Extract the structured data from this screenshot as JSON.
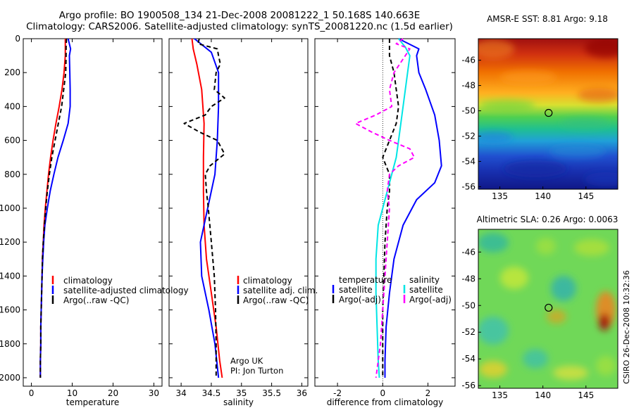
{
  "header": {
    "line1": "Argo profile: BO 1900508_134 21-Dec-2008 20081222_1 50.168S 140.663E",
    "line2": "Climatology: CARS2006. Satellite-adjusted climatology: synTS_20081220.nc (1.5d earlier)"
  },
  "side_label": "CSIRO 26-Dec-2008 10:32:36",
  "colors": {
    "climatology": "#ff0000",
    "satellite": "#0000ff",
    "argo": "#000000",
    "sat_sal_diff": "#00e5e5",
    "argo_sal_diff": "#ff00ff"
  },
  "chart_data": [
    {
      "type": "line",
      "xlabel": "temperature",
      "xlim": [
        -2,
        32
      ],
      "xticks": [
        0,
        10,
        20,
        30
      ],
      "ylim": [
        0,
        2050
      ],
      "yticks": [
        0,
        200,
        400,
        600,
        800,
        1000,
        1200,
        1400,
        1600,
        1800,
        2000
      ],
      "y_reversed": true,
      "legend": [
        "climatology",
        "satellite-adjusted climatology",
        "Argo(..raw -QC)"
      ],
      "series": [
        {
          "name": "climatology",
          "style": "solid",
          "color": "#ff0000",
          "points": [
            [
              8.3,
              0
            ],
            [
              8.3,
              100
            ],
            [
              8.0,
              200
            ],
            [
              7.5,
              300
            ],
            [
              6.8,
              400
            ],
            [
              6.0,
              500
            ],
            [
              5.3,
              600
            ],
            [
              4.7,
              700
            ],
            [
              4.2,
              800
            ],
            [
              3.8,
              900
            ],
            [
              3.4,
              1000
            ],
            [
              3.1,
              1100
            ],
            [
              2.9,
              1200
            ],
            [
              2.7,
              1300
            ],
            [
              2.6,
              1400
            ],
            [
              2.5,
              1500
            ],
            [
              2.4,
              1600
            ],
            [
              2.3,
              1700
            ],
            [
              2.3,
              1800
            ],
            [
              2.2,
              1900
            ],
            [
              2.2,
              2000
            ]
          ]
        },
        {
          "name": "satellite-adjusted climatology",
          "style": "solid",
          "color": "#0000ff",
          "points": [
            [
              9.0,
              0
            ],
            [
              9.6,
              60
            ],
            [
              9.3,
              100
            ],
            [
              9.4,
              200
            ],
            [
              9.5,
              300
            ],
            [
              9.5,
              400
            ],
            [
              9.0,
              500
            ],
            [
              7.8,
              600
            ],
            [
              6.5,
              700
            ],
            [
              5.5,
              800
            ],
            [
              4.6,
              900
            ],
            [
              3.9,
              1000
            ],
            [
              3.3,
              1100
            ],
            [
              3.0,
              1200
            ],
            [
              2.8,
              1300
            ],
            [
              2.6,
              1400
            ],
            [
              2.5,
              1500
            ],
            [
              2.4,
              1600
            ],
            [
              2.3,
              1700
            ],
            [
              2.3,
              1800
            ],
            [
              2.2,
              1900
            ],
            [
              2.2,
              2000
            ]
          ]
        },
        {
          "name": "Argo(..raw -QC)",
          "style": "dashed",
          "color": "#000000",
          "points": [
            [
              8.6,
              0
            ],
            [
              8.5,
              50
            ],
            [
              8.5,
              100
            ],
            [
              8.4,
              200
            ],
            [
              7.9,
              300
            ],
            [
              7.4,
              400
            ],
            [
              6.6,
              500
            ],
            [
              5.8,
              600
            ],
            [
              5.0,
              700
            ],
            [
              4.4,
              800
            ],
            [
              3.9,
              900
            ],
            [
              3.5,
              1000
            ],
            [
              3.2,
              1100
            ],
            [
              2.9,
              1200
            ],
            [
              2.7,
              1300
            ],
            [
              2.6,
              1400
            ],
            [
              2.5,
              1500
            ],
            [
              2.4,
              1600
            ],
            [
              2.3,
              1700
            ],
            [
              2.3,
              1800
            ],
            [
              2.2,
              1900
            ],
            [
              2.2,
              2000
            ]
          ]
        }
      ]
    },
    {
      "type": "line",
      "xlabel": "salinity",
      "xlim": [
        33.8,
        36.1
      ],
      "xticks": [
        34,
        34.5,
        35,
        35.5,
        36
      ],
      "ylim": [
        0,
        2050
      ],
      "y_reversed": true,
      "legend": [
        "climatology",
        "satellite adj. clim.",
        "Argo(..raw -QC)"
      ],
      "annotation": [
        "Argo UK",
        "PI: Jon Turton"
      ],
      "series": [
        {
          "name": "climatology",
          "style": "solid",
          "color": "#ff0000",
          "points": [
            [
              34.18,
              0
            ],
            [
              34.2,
              60
            ],
            [
              34.26,
              150
            ],
            [
              34.34,
              300
            ],
            [
              34.38,
              500
            ],
            [
              34.37,
              700
            ],
            [
              34.37,
              900
            ],
            [
              34.38,
              1100
            ],
            [
              34.42,
              1300
            ],
            [
              34.5,
              1500
            ],
            [
              34.58,
              1700
            ],
            [
              34.64,
              1900
            ],
            [
              34.68,
              2000
            ]
          ]
        },
        {
          "name": "satellite adj. clim.",
          "style": "solid",
          "color": "#0000ff",
          "points": [
            [
              34.22,
              0
            ],
            [
              34.5,
              80
            ],
            [
              34.62,
              200
            ],
            [
              34.62,
              400
            ],
            [
              34.6,
              600
            ],
            [
              34.56,
              800
            ],
            [
              34.44,
              1000
            ],
            [
              34.32,
              1200
            ],
            [
              34.34,
              1400
            ],
            [
              34.46,
              1600
            ],
            [
              34.56,
              1800
            ],
            [
              34.62,
              2000
            ]
          ]
        },
        {
          "name": "Argo(..raw -QC)",
          "style": "dashed",
          "color": "#000000",
          "points": [
            [
              34.3,
              0
            ],
            [
              34.28,
              30
            ],
            [
              34.6,
              60
            ],
            [
              34.62,
              100
            ],
            [
              34.65,
              150
            ],
            [
              34.58,
              200
            ],
            [
              34.55,
              300
            ],
            [
              34.72,
              350
            ],
            [
              34.5,
              400
            ],
            [
              34.4,
              450
            ],
            [
              34.05,
              500
            ],
            [
              34.3,
              550
            ],
            [
              34.6,
              600
            ],
            [
              34.72,
              680
            ],
            [
              34.48,
              750
            ],
            [
              34.4,
              800
            ],
            [
              34.42,
              900
            ],
            [
              34.45,
              1000
            ],
            [
              34.5,
              1200
            ],
            [
              34.55,
              1400
            ],
            [
              34.57,
              1600
            ],
            [
              34.58,
              1800
            ],
            [
              34.58,
              2000
            ]
          ]
        }
      ]
    },
    {
      "type": "line",
      "xlabel": "difference from climatology",
      "xlim": [
        -3,
        3.2
      ],
      "xticks": [
        -2,
        0,
        2
      ],
      "ylim": [
        0,
        2050
      ],
      "y_reversed": true,
      "legend": [
        {
          "heading": "temperature",
          "items": [
            "satellite",
            "Argo(-adj)"
          ]
        },
        {
          "heading": "salinity",
          "items": [
            "satellite",
            "Argo(-adj)"
          ]
        }
      ],
      "series": [
        {
          "name": "temperature satellite",
          "style": "solid",
          "color": "#0000ff",
          "points": [
            [
              0.7,
              0
            ],
            [
              1.6,
              60
            ],
            [
              1.5,
              100
            ],
            [
              1.6,
              200
            ],
            [
              1.9,
              300
            ],
            [
              2.3,
              450
            ],
            [
              2.5,
              600
            ],
            [
              2.6,
              750
            ],
            [
              2.3,
              850
            ],
            [
              1.5,
              950
            ],
            [
              0.9,
              1100
            ],
            [
              0.5,
              1300
            ],
            [
              0.3,
              1500
            ],
            [
              0.15,
              1700
            ],
            [
              0.1,
              1900
            ],
            [
              0.1,
              2000
            ]
          ]
        },
        {
          "name": "temperature Argo(-adj)",
          "style": "dashed",
          "color": "#000000",
          "points": [
            [
              0.3,
              0
            ],
            [
              0.3,
              100
            ],
            [
              0.5,
              200
            ],
            [
              0.6,
              300
            ],
            [
              0.7,
              400
            ],
            [
              0.6,
              500
            ],
            [
              0.3,
              600
            ],
            [
              0.0,
              700
            ],
            [
              0.3,
              800
            ],
            [
              0.3,
              900
            ],
            [
              0.2,
              1000
            ],
            [
              0.1,
              1200
            ],
            [
              0.05,
              1400
            ],
            [
              0.0,
              1600
            ],
            [
              0.0,
              1800
            ],
            [
              0.0,
              2000
            ]
          ]
        },
        {
          "name": "salinity satellite",
          "style": "solid",
          "color": "#00e5e5",
          "points": [
            [
              0.7,
              0
            ],
            [
              1.0,
              50
            ],
            [
              1.2,
              100
            ],
            [
              1.1,
              200
            ],
            [
              1.0,
              300
            ],
            [
              0.9,
              400
            ],
            [
              0.8,
              500
            ],
            [
              0.7,
              600
            ],
            [
              0.6,
              700
            ],
            [
              0.4,
              800
            ],
            [
              0.2,
              900
            ],
            [
              0.0,
              1000
            ],
            [
              -0.2,
              1100
            ],
            [
              -0.3,
              1300
            ],
            [
              -0.3,
              1500
            ],
            [
              -0.25,
              1700
            ],
            [
              -0.2,
              1900
            ],
            [
              -0.15,
              2000
            ]
          ]
        },
        {
          "name": "salinity Argo(-adj)",
          "style": "dashed",
          "color": "#ff00ff",
          "points": [
            [
              0.9,
              0
            ],
            [
              0.6,
              30
            ],
            [
              1.2,
              60
            ],
            [
              1.0,
              100
            ],
            [
              0.5,
              200
            ],
            [
              0.3,
              300
            ],
            [
              0.4,
              400
            ],
            [
              -0.3,
              450
            ],
            [
              -1.2,
              500
            ],
            [
              -0.5,
              550
            ],
            [
              0.3,
              600
            ],
            [
              1.2,
              650
            ],
            [
              1.4,
              700
            ],
            [
              0.7,
              750
            ],
            [
              0.3,
              800
            ],
            [
              0.2,
              900
            ],
            [
              0.3,
              1000
            ],
            [
              0.2,
              1200
            ],
            [
              0.1,
              1400
            ],
            [
              0.0,
              1600
            ],
            [
              -0.1,
              1800
            ],
            [
              -0.2,
              1900
            ],
            [
              -0.3,
              2000
            ]
          ]
        }
      ]
    },
    {
      "type": "heatmap",
      "title": "AMSR-E SST: 8.81 Argo: 9.18",
      "xlim": [
        132.5,
        148.7
      ],
      "xticks": [
        135,
        140,
        145
      ],
      "ylim": [
        -56.2,
        -44.3
      ],
      "yticks": [
        -46,
        -48,
        -50,
        -52,
        -54,
        -56
      ],
      "marker": {
        "lon": 140.663,
        "lat": -50.168
      }
    },
    {
      "type": "heatmap",
      "title": "Altimetric SLA: 0.26 Argo: 0.0063",
      "xlim": [
        132.5,
        148.7
      ],
      "xticks": [
        135,
        140,
        145
      ],
      "ylim": [
        -56.2,
        -44.3
      ],
      "yticks": [
        -46,
        -48,
        -50,
        -52,
        -54,
        -56
      ],
      "marker": {
        "lon": 140.663,
        "lat": -50.168
      }
    }
  ]
}
